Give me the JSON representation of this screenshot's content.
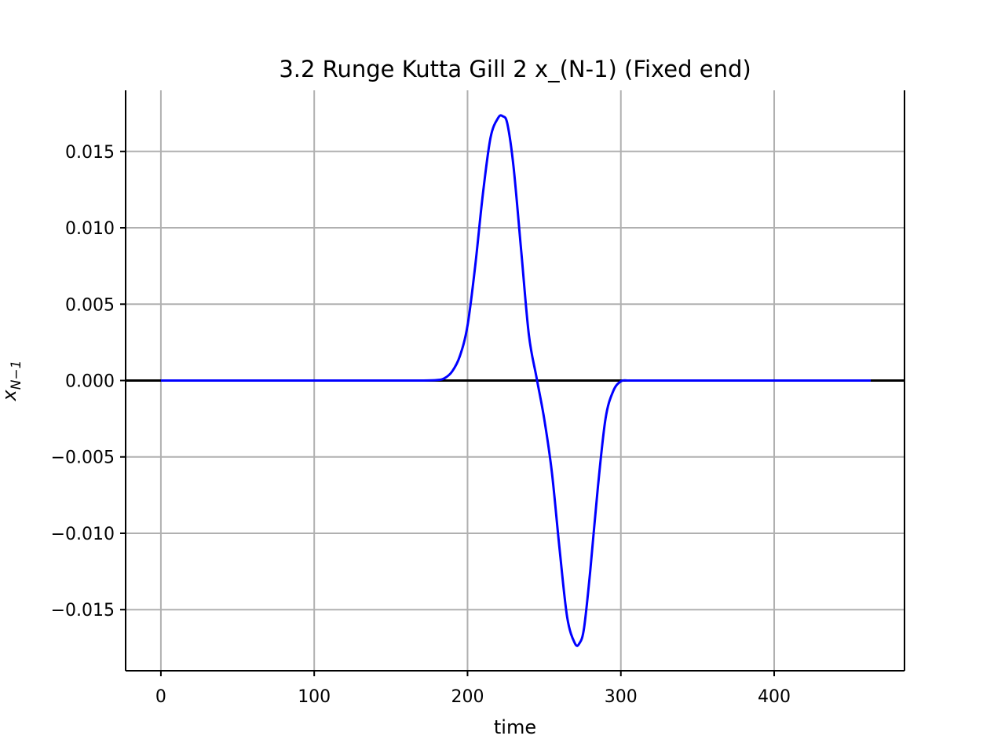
{
  "chart_data": {
    "type": "line",
    "title": "3.2 Runge Kutta Gill 2 x_(N-1) (Fixed end)",
    "xlabel": "time",
    "ylabel": {
      "base": "x",
      "subscript": "N−1"
    },
    "xlim": [
      -23,
      485
    ],
    "ylim": [
      -0.019,
      0.019
    ],
    "xticks": [
      0,
      100,
      200,
      300,
      400
    ],
    "xtick_labels": [
      "0",
      "100",
      "200",
      "300",
      "400"
    ],
    "yticks": [
      0.015,
      0.01,
      0.005,
      0.0,
      -0.005,
      -0.01,
      -0.015
    ],
    "ytick_labels": [
      "0.015",
      "0.010",
      "0.005",
      "0.000",
      "−0.005",
      "−0.010",
      "−0.015"
    ],
    "grid": true,
    "hline": 0,
    "series": [
      {
        "color": "#0000ff",
        "x": [
          0,
          100,
          150,
          170,
          180,
          185,
          190,
          195,
          200,
          205,
          210,
          215,
          220,
          223,
          226,
          230,
          235,
          240,
          245,
          250,
          255,
          260,
          265,
          270,
          273,
          276,
          280,
          285,
          290,
          295,
          300,
          305,
          310,
          350,
          400,
          463
        ],
        "y": [
          0,
          0,
          0,
          0,
          3e-05,
          0.00015,
          0.0006,
          0.0016,
          0.0036,
          0.0075,
          0.0122,
          0.0159,
          0.0172,
          0.0173,
          0.0168,
          0.014,
          0.0085,
          0.003,
          0.0002,
          -0.0025,
          -0.006,
          -0.011,
          -0.0155,
          -0.0172,
          -0.0172,
          -0.0162,
          -0.0125,
          -0.007,
          -0.0025,
          -0.0007,
          -5e-05,
          0,
          0,
          0,
          0,
          0
        ]
      }
    ]
  }
}
